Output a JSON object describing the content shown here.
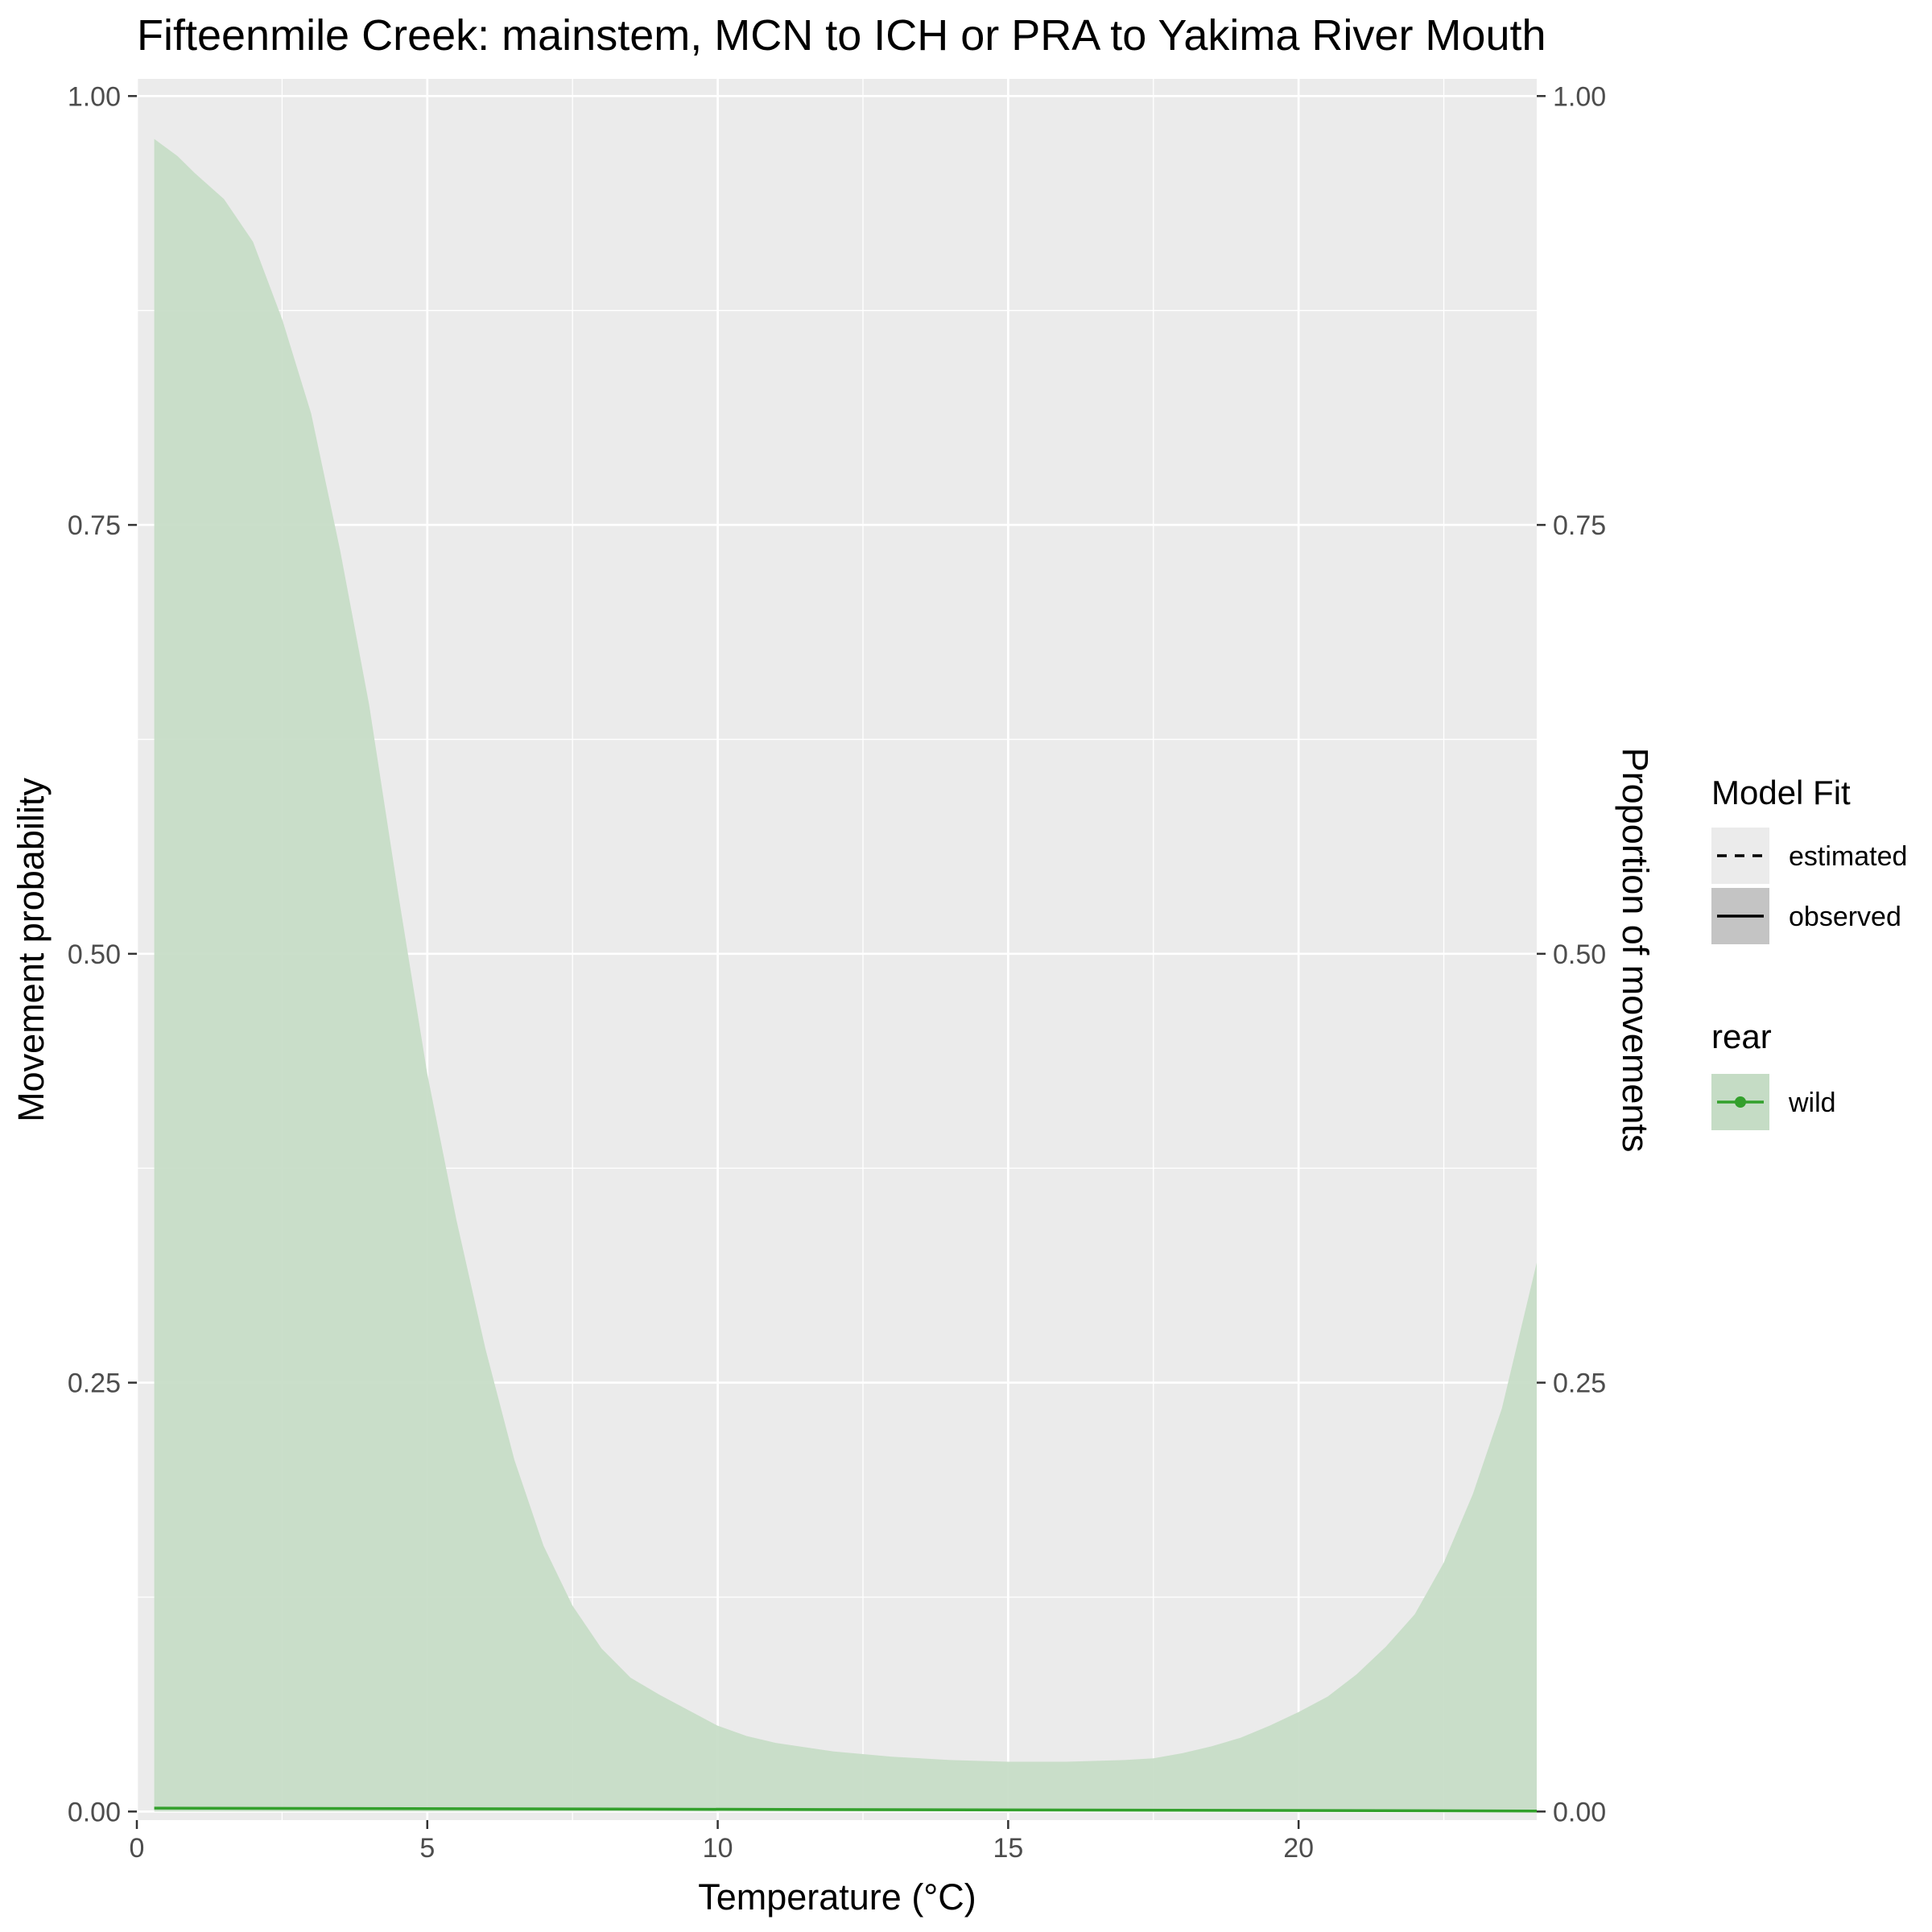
{
  "chart_data": {
    "type": "area",
    "title": "Fifteenmile Creek: mainstem, MCN to ICH or PRA to Yakima River Mouth",
    "xlabel": "Temperature (°C)",
    "ylabel": "Movement probability",
    "ylabel_right": "Proportion of movements",
    "xlim": [
      0,
      24.1
    ],
    "ylim": [
      -0.005,
      1.01
    ],
    "x_ticks": [
      0,
      5,
      10,
      15,
      20
    ],
    "x_tick_labels": [
      "0",
      "5",
      "10",
      "15",
      "20"
    ],
    "y_ticks": [
      0,
      0.25,
      0.5,
      0.75,
      1
    ],
    "y_tick_labels": [
      "0.00",
      "0.25",
      "0.50",
      "0.75",
      "1.00"
    ],
    "grid": true,
    "legend_position": "right",
    "colors": {
      "panel": "#ebebeb",
      "grid": "#ffffff",
      "series": "#33a02c",
      "ribbon": "#c5dcc5",
      "axis_text": "#4d4d4d",
      "legend_key": "#ebebeb",
      "legend_key_observed": "#c4c4c4"
    },
    "series": [
      {
        "name": "wild",
        "line": "estimated",
        "x": [
          0.3,
          24.1
        ],
        "y": [
          0.002,
          0.0003
        ]
      }
    ],
    "ribbon": {
      "name": "wild",
      "x": [
        0.3,
        0.7,
        1.0,
        1.5,
        2.0,
        2.5,
        3.0,
        3.5,
        4.0,
        4.5,
        5.0,
        5.5,
        6.0,
        6.5,
        7.0,
        7.5,
        8.0,
        8.5,
        9.0,
        9.5,
        10.0,
        10.5,
        11.0,
        12.0,
        13.0,
        14.0,
        15.0,
        16.0,
        17.0,
        17.5,
        18.0,
        18.5,
        19.0,
        19.5,
        20.0,
        20.5,
        21.0,
        21.5,
        22.0,
        22.5,
        23.0,
        23.5,
        24.1
      ],
      "upper": [
        0.975,
        0.965,
        0.955,
        0.94,
        0.915,
        0.87,
        0.815,
        0.735,
        0.645,
        0.535,
        0.43,
        0.345,
        0.27,
        0.205,
        0.155,
        0.12,
        0.095,
        0.078,
        0.068,
        0.059,
        0.05,
        0.044,
        0.04,
        0.035,
        0.032,
        0.03,
        0.029,
        0.029,
        0.03,
        0.031,
        0.034,
        0.038,
        0.043,
        0.05,
        0.058,
        0.067,
        0.08,
        0.096,
        0.115,
        0.145,
        0.185,
        0.235,
        0.32
      ],
      "lower": 0
    },
    "legend": {
      "model_fit": {
        "title": "Model Fit",
        "items": [
          "estimated",
          "observed"
        ]
      },
      "rear": {
        "title": "rear",
        "items": [
          "wild"
        ]
      }
    }
  }
}
